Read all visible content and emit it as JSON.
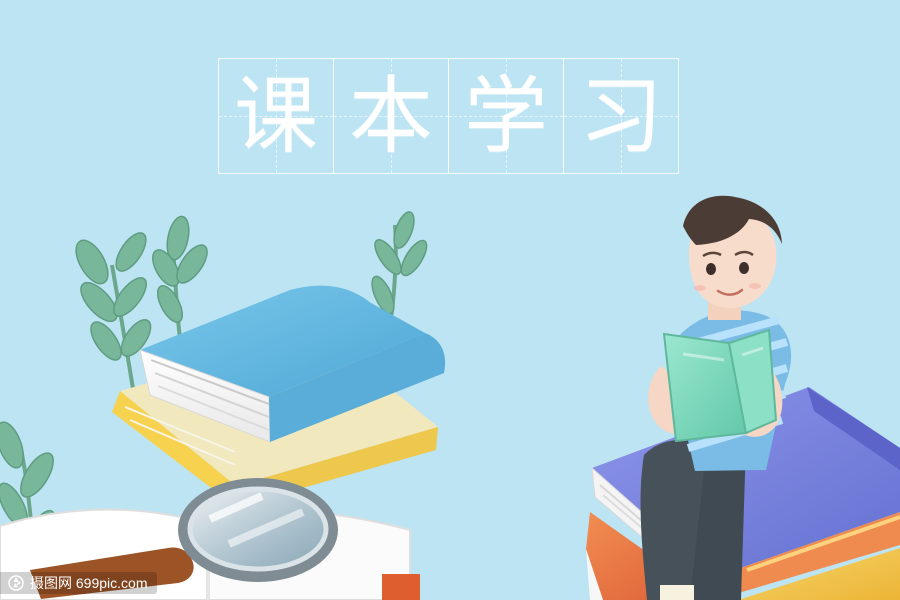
{
  "title": {
    "text": "课本学习",
    "chars": [
      "课",
      "本",
      "学",
      "习"
    ]
  },
  "watermark": {
    "text": "摄图网 699pic.com",
    "icon": "camera-aperture-icon"
  },
  "colors": {
    "background": "#bde4f3",
    "book_blue": "#68b8de",
    "book_yellow": "#f2c84f",
    "book_purple": "#7a82da",
    "book_orange": "#e86d3d",
    "book_gold": "#f0c44a",
    "book_green": "#7ed8bd",
    "shirt_blue": "#77b9e6",
    "plant_green": "#78b69a"
  },
  "scene": {
    "elements": [
      "plant-leaves",
      "book-stack-left",
      "magnifying-glass",
      "open-book",
      "boy-reading",
      "book-stack-right"
    ]
  }
}
